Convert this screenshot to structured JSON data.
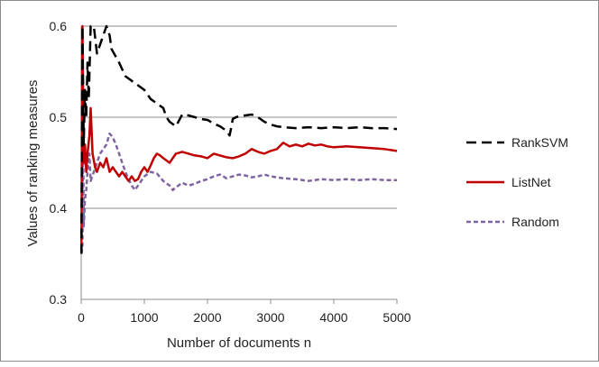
{
  "chart_data": {
    "type": "line",
    "title": "",
    "xlabel": "Number of documents n",
    "ylabel": "Values of ranking measures",
    "xlim": [
      0,
      5000
    ],
    "ylim": [
      0.3,
      0.6
    ],
    "xticks": [
      0,
      1000,
      2000,
      3000,
      4000,
      5000
    ],
    "xtick_labels": [
      "0",
      "1000",
      "2000",
      "3000",
      "4000",
      "5000"
    ],
    "yticks": [
      0.3,
      0.4,
      0.5,
      0.6
    ],
    "ytick_labels": [
      "0.3",
      "0.4",
      "0.5",
      "0.6"
    ],
    "grid": "horizontal",
    "legend_position": "right",
    "series": [
      {
        "name": "RankSVM",
        "color": "#000000",
        "style": "long-dash",
        "points": [
          [
            5,
            0.35
          ],
          [
            20,
            0.6
          ],
          [
            40,
            0.47
          ],
          [
            60,
            0.53
          ],
          [
            80,
            0.5
          ],
          [
            100,
            0.56
          ],
          [
            120,
            0.52
          ],
          [
            150,
            0.6
          ],
          [
            200,
            0.6
          ],
          [
            250,
            0.57
          ],
          [
            300,
            0.58
          ],
          [
            350,
            0.59
          ],
          [
            400,
            0.6
          ],
          [
            450,
            0.59
          ],
          [
            480,
            0.575
          ],
          [
            520,
            0.57
          ],
          [
            600,
            0.56
          ],
          [
            700,
            0.545
          ],
          [
            800,
            0.54
          ],
          [
            900,
            0.535
          ],
          [
            1000,
            0.53
          ],
          [
            1100,
            0.52
          ],
          [
            1200,
            0.515
          ],
          [
            1300,
            0.51
          ],
          [
            1350,
            0.5
          ],
          [
            1400,
            0.495
          ],
          [
            1500,
            0.49
          ],
          [
            1600,
            0.503
          ],
          [
            1700,
            0.502
          ],
          [
            1800,
            0.5
          ],
          [
            1900,
            0.498
          ],
          [
            2000,
            0.497
          ],
          [
            2100,
            0.493
          ],
          [
            2200,
            0.49
          ],
          [
            2300,
            0.485
          ],
          [
            2350,
            0.48
          ],
          [
            2380,
            0.49
          ],
          [
            2400,
            0.498
          ],
          [
            2450,
            0.5
          ],
          [
            2500,
            0.501
          ],
          [
            2600,
            0.502
          ],
          [
            2700,
            0.503
          ],
          [
            2800,
            0.5
          ],
          [
            2900,
            0.495
          ],
          [
            3000,
            0.492
          ],
          [
            3100,
            0.49
          ],
          [
            3200,
            0.489
          ],
          [
            3400,
            0.488
          ],
          [
            3600,
            0.489
          ],
          [
            3800,
            0.488
          ],
          [
            4000,
            0.489
          ],
          [
            4200,
            0.488
          ],
          [
            4400,
            0.489
          ],
          [
            4600,
            0.488
          ],
          [
            4800,
            0.488
          ],
          [
            5000,
            0.487
          ]
        ]
      },
      {
        "name": "ListNet",
        "color": "#c00000",
        "style": "solid",
        "points": [
          [
            5,
            0.36
          ],
          [
            20,
            0.6
          ],
          [
            40,
            0.45
          ],
          [
            60,
            0.47
          ],
          [
            80,
            0.44
          ],
          [
            100,
            0.46
          ],
          [
            130,
            0.48
          ],
          [
            150,
            0.51
          ],
          [
            180,
            0.46
          ],
          [
            220,
            0.445
          ],
          [
            250,
            0.44
          ],
          [
            300,
            0.45
          ],
          [
            350,
            0.445
          ],
          [
            400,
            0.455
          ],
          [
            450,
            0.44
          ],
          [
            500,
            0.445
          ],
          [
            550,
            0.44
          ],
          [
            600,
            0.435
          ],
          [
            650,
            0.44
          ],
          [
            700,
            0.435
          ],
          [
            750,
            0.43
          ],
          [
            800,
            0.435
          ],
          [
            850,
            0.43
          ],
          [
            900,
            0.432
          ],
          [
            950,
            0.44
          ],
          [
            1000,
            0.445
          ],
          [
            1050,
            0.44
          ],
          [
            1100,
            0.447
          ],
          [
            1150,
            0.455
          ],
          [
            1200,
            0.46
          ],
          [
            1250,
            0.458
          ],
          [
            1300,
            0.455
          ],
          [
            1400,
            0.45
          ],
          [
            1450,
            0.455
          ],
          [
            1500,
            0.46
          ],
          [
            1600,
            0.462
          ],
          [
            1700,
            0.46
          ],
          [
            1800,
            0.458
          ],
          [
            1900,
            0.457
          ],
          [
            2000,
            0.455
          ],
          [
            2100,
            0.46
          ],
          [
            2200,
            0.458
          ],
          [
            2300,
            0.456
          ],
          [
            2400,
            0.455
          ],
          [
            2500,
            0.457
          ],
          [
            2600,
            0.46
          ],
          [
            2700,
            0.465
          ],
          [
            2800,
            0.462
          ],
          [
            2900,
            0.46
          ],
          [
            3000,
            0.463
          ],
          [
            3100,
            0.465
          ],
          [
            3200,
            0.472
          ],
          [
            3300,
            0.468
          ],
          [
            3400,
            0.47
          ],
          [
            3500,
            0.468
          ],
          [
            3600,
            0.471
          ],
          [
            3700,
            0.469
          ],
          [
            3800,
            0.47
          ],
          [
            3900,
            0.468
          ],
          [
            4000,
            0.467
          ],
          [
            4200,
            0.468
          ],
          [
            4400,
            0.467
          ],
          [
            4600,
            0.466
          ],
          [
            4800,
            0.465
          ],
          [
            5000,
            0.463
          ]
        ]
      },
      {
        "name": "Random",
        "color": "#8064a2",
        "style": "short-dash",
        "points": [
          [
            5,
            0.35
          ],
          [
            20,
            0.36
          ],
          [
            30,
            0.5
          ],
          [
            40,
            0.38
          ],
          [
            60,
            0.41
          ],
          [
            80,
            0.42
          ],
          [
            100,
            0.44
          ],
          [
            130,
            0.46
          ],
          [
            150,
            0.43
          ],
          [
            200,
            0.44
          ],
          [
            250,
            0.45
          ],
          [
            300,
            0.46
          ],
          [
            350,
            0.465
          ],
          [
            400,
            0.47
          ],
          [
            450,
            0.482
          ],
          [
            500,
            0.478
          ],
          [
            550,
            0.47
          ],
          [
            600,
            0.46
          ],
          [
            650,
            0.45
          ],
          [
            700,
            0.44
          ],
          [
            750,
            0.432
          ],
          [
            800,
            0.425
          ],
          [
            850,
            0.42
          ],
          [
            900,
            0.425
          ],
          [
            950,
            0.43
          ],
          [
            1000,
            0.435
          ],
          [
            1100,
            0.44
          ],
          [
            1200,
            0.438
          ],
          [
            1300,
            0.43
          ],
          [
            1400,
            0.425
          ],
          [
            1450,
            0.42
          ],
          [
            1500,
            0.423
          ],
          [
            1600,
            0.428
          ],
          [
            1700,
            0.425
          ],
          [
            1800,
            0.427
          ],
          [
            1900,
            0.43
          ],
          [
            2000,
            0.432
          ],
          [
            2100,
            0.435
          ],
          [
            2200,
            0.437
          ],
          [
            2300,
            0.433
          ],
          [
            2400,
            0.435
          ],
          [
            2500,
            0.437
          ],
          [
            2600,
            0.436
          ],
          [
            2700,
            0.434
          ],
          [
            2800,
            0.435
          ],
          [
            2900,
            0.437
          ],
          [
            3000,
            0.435
          ],
          [
            3200,
            0.433
          ],
          [
            3400,
            0.432
          ],
          [
            3600,
            0.43
          ],
          [
            3800,
            0.432
          ],
          [
            4000,
            0.431
          ],
          [
            4200,
            0.432
          ],
          [
            4400,
            0.431
          ],
          [
            4600,
            0.432
          ],
          [
            4800,
            0.431
          ],
          [
            5000,
            0.431
          ]
        ]
      }
    ]
  }
}
